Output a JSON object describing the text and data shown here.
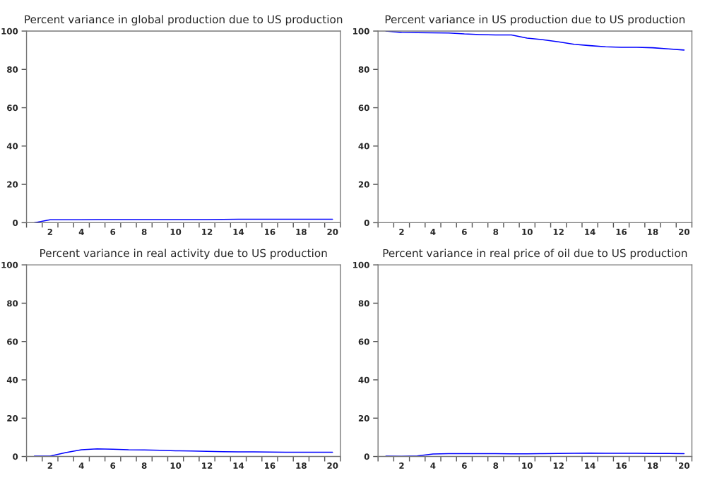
{
  "chart_data": [
    {
      "type": "line",
      "title": "Percent variance in global production due to US production",
      "x": [
        1,
        2,
        3,
        4,
        5,
        6,
        7,
        8,
        9,
        10,
        11,
        12,
        13,
        14,
        15,
        16,
        17,
        18,
        19,
        20
      ],
      "series": [
        {
          "color": "#0000ff",
          "values": [
            0,
            1.5,
            1.5,
            1.5,
            1.6,
            1.6,
            1.6,
            1.6,
            1.6,
            1.6,
            1.6,
            1.6,
            1.7,
            1.8,
            1.8,
            1.8,
            1.8,
            1.8,
            1.8,
            1.8
          ]
        }
      ],
      "xlim": [
        0.5,
        20.5
      ],
      "ylim": [
        0,
        100
      ],
      "yticks": [
        0,
        20,
        40,
        60,
        80,
        100
      ],
      "xticks": [
        {
          "value": 0.5,
          "label": null
        },
        {
          "value": 1.5,
          "label": null
        },
        {
          "value": 2,
          "label": "2"
        },
        {
          "value": 2.5,
          "label": null
        },
        {
          "value": 3.5,
          "label": null
        },
        {
          "value": 4,
          "label": "4"
        },
        {
          "value": 4.5,
          "label": null
        },
        {
          "value": 5.5,
          "label": null
        },
        {
          "value": 6,
          "label": "6"
        },
        {
          "value": 6.5,
          "label": null
        },
        {
          "value": 7.5,
          "label": null
        },
        {
          "value": 8,
          "label": "8"
        },
        {
          "value": 8.5,
          "label": null
        },
        {
          "value": 9.5,
          "label": null
        },
        {
          "value": 10,
          "label": "10"
        },
        {
          "value": 10.5,
          "label": null
        },
        {
          "value": 11.5,
          "label": null
        },
        {
          "value": 12,
          "label": "12"
        },
        {
          "value": 12.5,
          "label": null
        },
        {
          "value": 13.5,
          "label": null
        },
        {
          "value": 14,
          "label": "14"
        },
        {
          "value": 14.5,
          "label": null
        },
        {
          "value": 15.5,
          "label": null
        },
        {
          "value": 16,
          "label": "16"
        },
        {
          "value": 16.5,
          "label": null
        },
        {
          "value": 17.5,
          "label": null
        },
        {
          "value": 18,
          "label": "18"
        },
        {
          "value": 18.5,
          "label": null
        },
        {
          "value": 19.5,
          "label": null
        },
        {
          "value": 20,
          "label": "20"
        },
        {
          "value": 20.5,
          "label": null
        }
      ],
      "grid": false
    },
    {
      "type": "line",
      "title": "Percent variance in US production due to US production",
      "x": [
        1,
        2,
        3,
        4,
        5,
        6,
        7,
        8,
        9,
        10,
        11,
        12,
        13,
        14,
        15,
        16,
        17,
        18,
        19,
        20
      ],
      "series": [
        {
          "color": "#0000ff",
          "values": [
            100,
            99.3,
            99.2,
            99.1,
            99,
            98.5,
            98.2,
            98,
            98,
            96.3,
            95.5,
            94.4,
            93.1,
            92.4,
            91.8,
            91.5,
            91.5,
            91.3,
            90.7,
            90.1
          ]
        }
      ],
      "xlim": [
        0.5,
        20.5
      ],
      "ylim": [
        0,
        100
      ],
      "yticks": [
        0,
        20,
        40,
        60,
        80,
        100
      ],
      "xticks": [
        {
          "value": 0.5,
          "label": null
        },
        {
          "value": 1.5,
          "label": null
        },
        {
          "value": 2,
          "label": "2"
        },
        {
          "value": 2.5,
          "label": null
        },
        {
          "value": 3.5,
          "label": null
        },
        {
          "value": 4,
          "label": "4"
        },
        {
          "value": 4.5,
          "label": null
        },
        {
          "value": 5.5,
          "label": null
        },
        {
          "value": 6,
          "label": "6"
        },
        {
          "value": 6.5,
          "label": null
        },
        {
          "value": 7.5,
          "label": null
        },
        {
          "value": 8,
          "label": "8"
        },
        {
          "value": 8.5,
          "label": null
        },
        {
          "value": 9.5,
          "label": null
        },
        {
          "value": 10,
          "label": "10"
        },
        {
          "value": 10.5,
          "label": null
        },
        {
          "value": 11.5,
          "label": null
        },
        {
          "value": 12,
          "label": "12"
        },
        {
          "value": 12.5,
          "label": null
        },
        {
          "value": 13.5,
          "label": null
        },
        {
          "value": 14,
          "label": "14"
        },
        {
          "value": 14.5,
          "label": null
        },
        {
          "value": 15.5,
          "label": null
        },
        {
          "value": 16,
          "label": "16"
        },
        {
          "value": 16.5,
          "label": null
        },
        {
          "value": 17.5,
          "label": null
        },
        {
          "value": 18,
          "label": "18"
        },
        {
          "value": 18.5,
          "label": null
        },
        {
          "value": 19.5,
          "label": null
        },
        {
          "value": 20,
          "label": "20"
        },
        {
          "value": 20.5,
          "label": null
        }
      ],
      "grid": false
    },
    {
      "type": "line",
      "title": "Percent variance in real activity due to US production",
      "x": [
        1,
        2,
        3,
        4,
        5,
        6,
        7,
        8,
        9,
        10,
        11,
        12,
        13,
        14,
        15,
        16,
        17,
        18,
        19,
        20
      ],
      "series": [
        {
          "color": "#0000ff",
          "values": [
            0.2,
            0.2,
            2,
            3.5,
            4,
            3.8,
            3.5,
            3.4,
            3.2,
            3,
            2.9,
            2.7,
            2.5,
            2.4,
            2.4,
            2.3,
            2.2,
            2.2,
            2.2,
            2.2
          ]
        }
      ],
      "xlim": [
        0.5,
        20.5
      ],
      "ylim": [
        0,
        100
      ],
      "yticks": [
        0,
        20,
        40,
        60,
        80,
        100
      ],
      "xticks": [
        {
          "value": 0.5,
          "label": null
        },
        {
          "value": 1.5,
          "label": null
        },
        {
          "value": 2,
          "label": "2"
        },
        {
          "value": 2.5,
          "label": null
        },
        {
          "value": 3.5,
          "label": null
        },
        {
          "value": 4,
          "label": "4"
        },
        {
          "value": 4.5,
          "label": null
        },
        {
          "value": 5.5,
          "label": null
        },
        {
          "value": 6,
          "label": "6"
        },
        {
          "value": 6.5,
          "label": null
        },
        {
          "value": 7.5,
          "label": null
        },
        {
          "value": 8,
          "label": "8"
        },
        {
          "value": 8.5,
          "label": null
        },
        {
          "value": 9.5,
          "label": null
        },
        {
          "value": 10,
          "label": "10"
        },
        {
          "value": 10.5,
          "label": null
        },
        {
          "value": 11.5,
          "label": null
        },
        {
          "value": 12,
          "label": "12"
        },
        {
          "value": 12.5,
          "label": null
        },
        {
          "value": 13.5,
          "label": null
        },
        {
          "value": 14,
          "label": "14"
        },
        {
          "value": 14.5,
          "label": null
        },
        {
          "value": 15.5,
          "label": null
        },
        {
          "value": 16,
          "label": "16"
        },
        {
          "value": 16.5,
          "label": null
        },
        {
          "value": 17.5,
          "label": null
        },
        {
          "value": 18,
          "label": "18"
        },
        {
          "value": 18.5,
          "label": null
        },
        {
          "value": 19.5,
          "label": null
        },
        {
          "value": 20,
          "label": "20"
        },
        {
          "value": 20.5,
          "label": null
        }
      ],
      "grid": false
    },
    {
      "type": "line",
      "title": "Percent variance in real price of oil due to US production",
      "x": [
        1,
        2,
        3,
        4,
        5,
        6,
        7,
        8,
        9,
        10,
        11,
        12,
        13,
        14,
        15,
        16,
        17,
        18,
        19,
        20
      ],
      "series": [
        {
          "color": "#0000ff",
          "values": [
            0.2,
            0.1,
            0.3,
            1.3,
            1.5,
            1.5,
            1.5,
            1.5,
            1.4,
            1.4,
            1.5,
            1.6,
            1.7,
            1.8,
            1.7,
            1.7,
            1.7,
            1.6,
            1.6,
            1.5
          ]
        }
      ],
      "xlim": [
        0.5,
        20.5
      ],
      "ylim": [
        0,
        100
      ],
      "yticks": [
        0,
        20,
        40,
        60,
        80,
        100
      ],
      "xticks": [
        {
          "value": 0.5,
          "label": null
        },
        {
          "value": 1.5,
          "label": null
        },
        {
          "value": 2,
          "label": "2"
        },
        {
          "value": 2.5,
          "label": null
        },
        {
          "value": 3.5,
          "label": null
        },
        {
          "value": 4,
          "label": "4"
        },
        {
          "value": 4.5,
          "label": null
        },
        {
          "value": 5.5,
          "label": null
        },
        {
          "value": 6,
          "label": "6"
        },
        {
          "value": 6.5,
          "label": null
        },
        {
          "value": 7.5,
          "label": null
        },
        {
          "value": 8,
          "label": "8"
        },
        {
          "value": 8.5,
          "label": null
        },
        {
          "value": 9.5,
          "label": null
        },
        {
          "value": 10,
          "label": "10"
        },
        {
          "value": 10.5,
          "label": null
        },
        {
          "value": 11.5,
          "label": null
        },
        {
          "value": 12,
          "label": "12"
        },
        {
          "value": 12.5,
          "label": null
        },
        {
          "value": 13.5,
          "label": null
        },
        {
          "value": 14,
          "label": "14"
        },
        {
          "value": 14.5,
          "label": null
        },
        {
          "value": 15.5,
          "label": null
        },
        {
          "value": 16,
          "label": "16"
        },
        {
          "value": 16.5,
          "label": null
        },
        {
          "value": 17.5,
          "label": null
        },
        {
          "value": 18,
          "label": "18"
        },
        {
          "value": 18.5,
          "label": null
        },
        {
          "value": 19.5,
          "label": null
        },
        {
          "value": 20,
          "label": "20"
        },
        {
          "value": 20.5,
          "label": null
        }
      ],
      "grid": false
    }
  ]
}
